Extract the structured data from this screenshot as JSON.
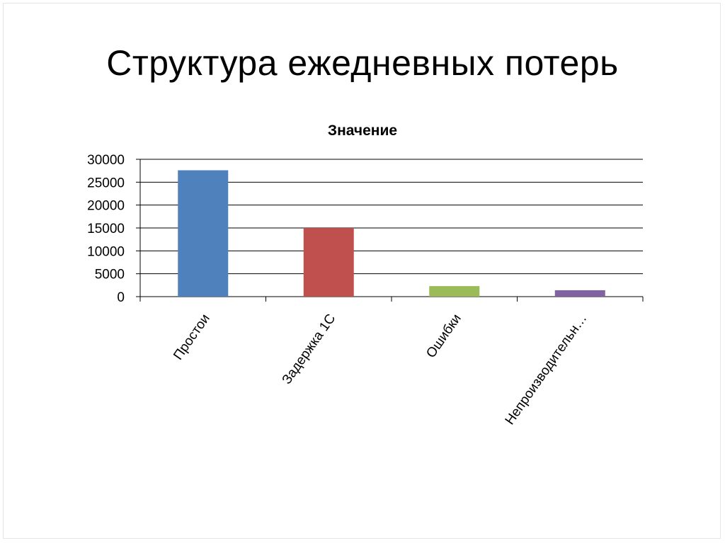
{
  "slide": {
    "title": "Структура ежедневных потерь"
  },
  "chart_data": {
    "type": "bar",
    "title": "Значение",
    "categories": [
      "Простои",
      "Задержка 1С",
      "Ошибки",
      "Непроизводительн…"
    ],
    "values": [
      27600,
      15000,
      2300,
      1400
    ],
    "colors": [
      "#4f81bd",
      "#c0504d",
      "#9bbb59",
      "#8064a2"
    ],
    "ylim": [
      0,
      30000
    ],
    "yticks": [
      0,
      5000,
      10000,
      15000,
      20000,
      25000,
      30000
    ],
    "grid": true,
    "legend": "none",
    "xlabel": "",
    "ylabel": ""
  }
}
